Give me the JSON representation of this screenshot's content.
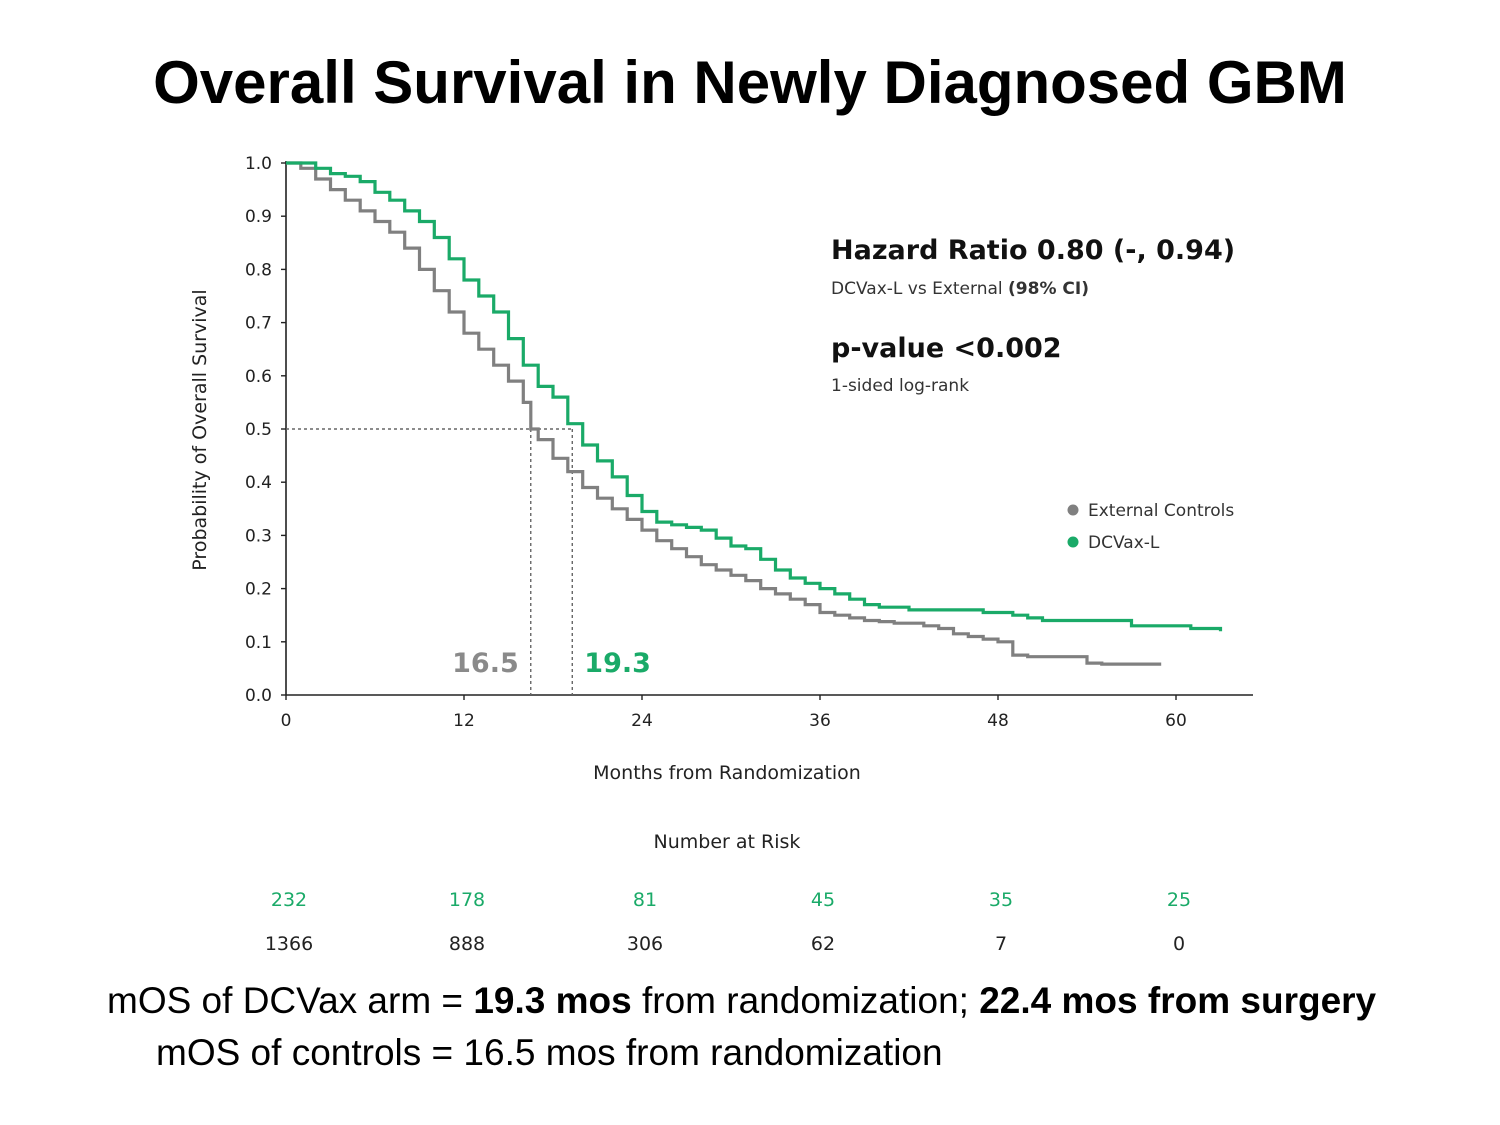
{
  "slide": {
    "title": "Overall Survival in Newly Diagnosed GBM"
  },
  "chart_data": {
    "type": "line",
    "xlabel": "Months from Randomization",
    "ylabel": "Probability of Overall Survival",
    "xlim": [
      0,
      65
    ],
    "ylim": [
      0,
      1
    ],
    "x_ticks": [
      0,
      12,
      24,
      36,
      48,
      60
    ],
    "y_ticks": [
      "0.0",
      "0.1",
      "0.2",
      "0.3",
      "0.4",
      "0.5",
      "0.6",
      "0.7",
      "0.8",
      "0.9",
      "1.0"
    ],
    "grid": false,
    "legend_position": "right",
    "series": [
      {
        "name": "External Controls",
        "color": "#808080",
        "x": [
          0,
          1,
          2,
          3,
          4,
          5,
          6,
          7,
          8,
          9,
          10,
          11,
          12,
          13,
          14,
          15,
          16,
          16.5,
          17,
          18,
          19,
          20,
          21,
          22,
          23,
          24,
          25,
          26,
          27,
          28,
          29,
          30,
          31,
          32,
          33,
          34,
          35,
          36,
          37,
          38,
          39,
          40,
          41,
          42,
          43,
          44,
          45,
          46,
          47,
          48,
          49,
          50,
          51,
          52,
          53,
          54,
          55,
          56,
          57,
          58,
          59
        ],
        "y": [
          1.0,
          0.99,
          0.97,
          0.95,
          0.93,
          0.91,
          0.89,
          0.87,
          0.84,
          0.8,
          0.76,
          0.72,
          0.68,
          0.65,
          0.62,
          0.59,
          0.55,
          0.5,
          0.48,
          0.445,
          0.42,
          0.39,
          0.37,
          0.35,
          0.33,
          0.31,
          0.29,
          0.275,
          0.26,
          0.245,
          0.235,
          0.225,
          0.215,
          0.2,
          0.19,
          0.18,
          0.17,
          0.155,
          0.15,
          0.145,
          0.14,
          0.138,
          0.135,
          0.135,
          0.13,
          0.125,
          0.115,
          0.11,
          0.105,
          0.1,
          0.075,
          0.072,
          0.072,
          0.072,
          0.072,
          0.06,
          0.058,
          0.058,
          0.058,
          0.058,
          0.058
        ]
      },
      {
        "name": "DCVax-L",
        "color": "#1aaa68",
        "x": [
          0,
          1,
          2,
          3,
          4,
          5,
          6,
          7,
          8,
          9,
          10,
          11,
          12,
          13,
          14,
          15,
          16,
          17,
          18,
          19,
          20,
          21,
          22,
          23,
          24,
          25,
          26,
          27,
          28,
          29,
          30,
          31,
          32,
          33,
          34,
          35,
          36,
          37,
          38,
          39,
          40,
          41,
          42,
          43,
          44,
          45,
          46,
          47,
          48,
          49,
          50,
          51,
          52,
          53,
          54,
          55,
          56,
          57,
          58,
          59,
          60,
          61,
          62,
          63
        ],
        "y": [
          1.0,
          1.0,
          0.99,
          0.98,
          0.975,
          0.965,
          0.945,
          0.93,
          0.91,
          0.89,
          0.86,
          0.82,
          0.78,
          0.75,
          0.72,
          0.67,
          0.62,
          0.58,
          0.56,
          0.51,
          0.47,
          0.44,
          0.41,
          0.375,
          0.345,
          0.325,
          0.32,
          0.315,
          0.31,
          0.295,
          0.28,
          0.275,
          0.255,
          0.235,
          0.22,
          0.21,
          0.2,
          0.19,
          0.18,
          0.17,
          0.165,
          0.165,
          0.16,
          0.16,
          0.16,
          0.16,
          0.16,
          0.155,
          0.155,
          0.15,
          0.145,
          0.14,
          0.14,
          0.14,
          0.14,
          0.14,
          0.14,
          0.13,
          0.13,
          0.13,
          0.13,
          0.125,
          0.125,
          0.12
        ]
      }
    ],
    "medians": [
      {
        "label": "16.5",
        "value": 16.5,
        "color": "#8a8a8a"
      },
      {
        "label": "19.3",
        "value": 19.3,
        "color": "#1aaa68"
      }
    ],
    "median_y": 0.5,
    "annotations": {
      "hr_title": "Hazard Ratio 0.80 (-, 0.94)",
      "hr_sub_prefix": "DCVax-L vs External ",
      "hr_sub_bold": "(98% CI)",
      "p_title": "p-value <0.002",
      "p_sub": "1-sided log-rank"
    },
    "risk_table": {
      "title": "Number at Risk",
      "rows": [
        {
          "series": "DCVax-L",
          "color": "#1aaa68",
          "values": [
            "232",
            "178",
            "81",
            "45",
            "35",
            "25"
          ]
        },
        {
          "series": "External Controls",
          "color": "#222222",
          "values": [
            "1366",
            "888",
            "306",
            "62",
            "7",
            "0"
          ]
        }
      ]
    }
  },
  "footer": {
    "line1_pre": "mOS of DCVax arm = ",
    "line1_b1": "19.3 mos",
    "line1_mid": " from randomization; ",
    "line1_b2": "22.4 mos from surgery",
    "line2": "mOS of controls = 16.5 mos from randomization"
  }
}
